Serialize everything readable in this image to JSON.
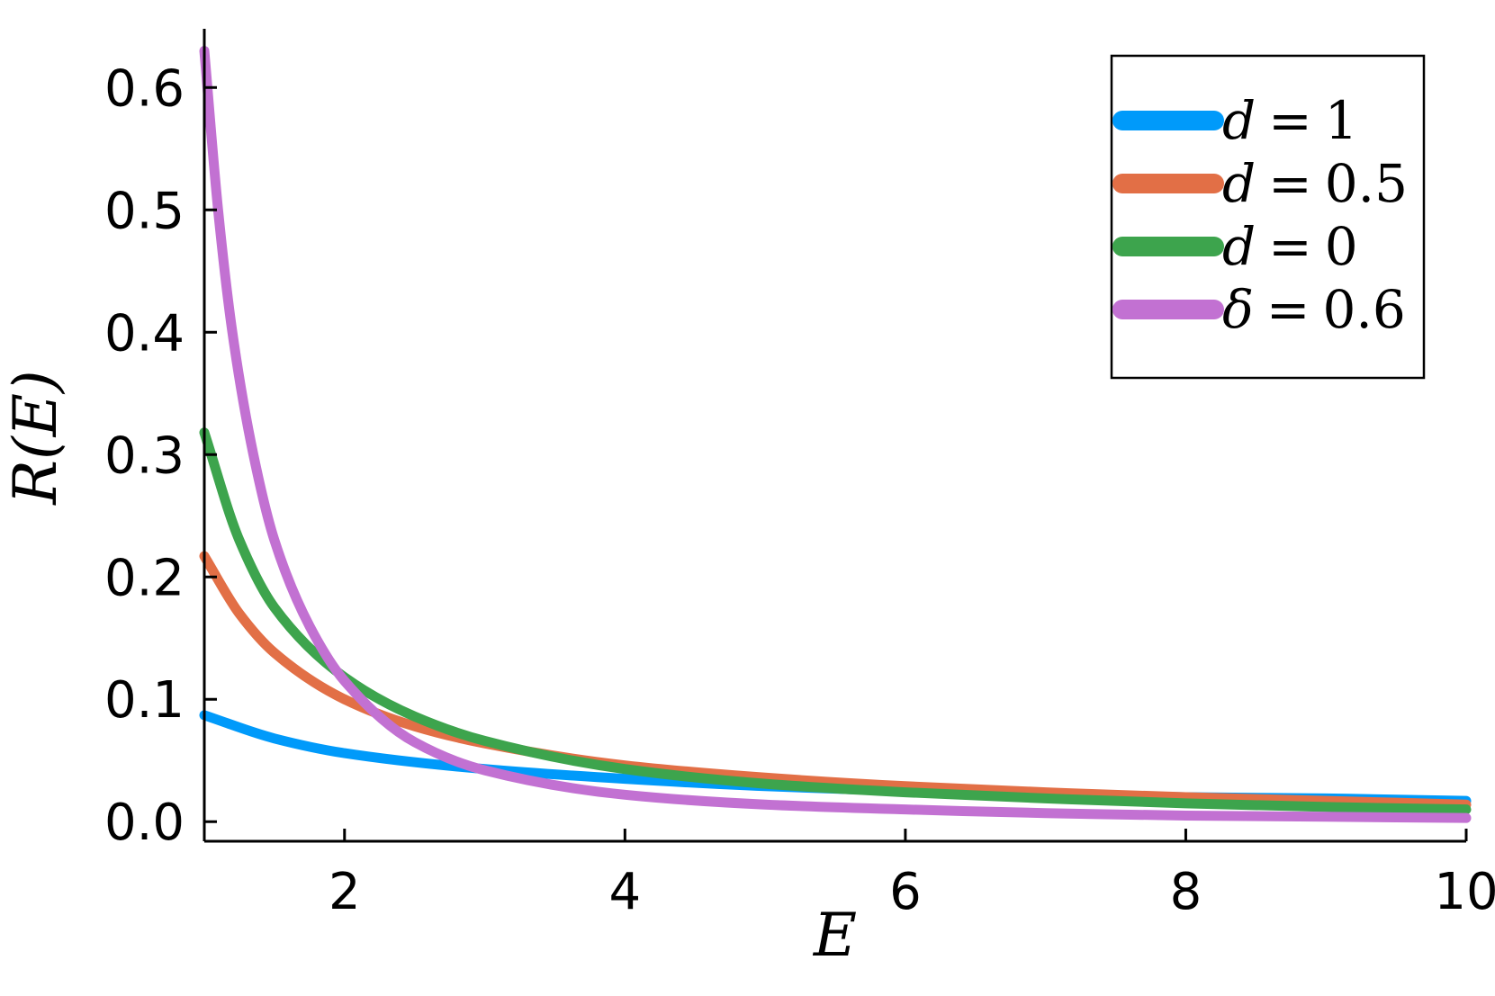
{
  "chart_data": {
    "type": "line",
    "xlabel": "E",
    "ylabel": "R(E)",
    "xlim": [
      1,
      10
    ],
    "ylim": [
      -0.016,
      0.648
    ],
    "x_ticks": [
      2,
      4,
      6,
      8,
      10
    ],
    "x_tick_labels": [
      "2",
      "4",
      "6",
      "8",
      "10"
    ],
    "y_ticks": [
      0.0,
      0.1,
      0.2,
      0.3,
      0.4,
      0.5,
      0.6
    ],
    "y_tick_labels": [
      "0.0",
      "0.1",
      "0.2",
      "0.3",
      "0.4",
      "0.5",
      "0.6"
    ],
    "grid": false,
    "legend_position": "top-right",
    "series": [
      {
        "name": "d = 1",
        "legend_var": "d",
        "legend_value": "1",
        "color": "#009AFA",
        "x": [
          1,
          1.5,
          2,
          3,
          4,
          5,
          6,
          7,
          8,
          9,
          10
        ],
        "y": [
          0.087,
          0.068,
          0.056,
          0.043,
          0.035,
          0.029,
          0.025,
          0.022,
          0.02,
          0.019,
          0.017
        ]
      },
      {
        "name": "d = 0.5",
        "legend_var": "d",
        "legend_value": "0.5",
        "color": "#E26F46",
        "x": [
          1,
          1.25,
          1.5,
          2,
          2.5,
          3,
          4,
          5,
          6,
          7,
          8,
          9,
          10
        ],
        "y": [
          0.217,
          0.17,
          0.138,
          0.1,
          0.078,
          0.064,
          0.046,
          0.036,
          0.029,
          0.024,
          0.02,
          0.017,
          0.014
        ]
      },
      {
        "name": "d = 0",
        "legend_var": "d",
        "legend_value": "0",
        "color": "#3DA44D",
        "x": [
          1,
          1.25,
          1.5,
          2,
          2.5,
          3,
          4,
          5,
          6,
          7,
          8,
          9,
          10
        ],
        "y": [
          0.318,
          0.23,
          0.175,
          0.118,
          0.086,
          0.066,
          0.043,
          0.031,
          0.024,
          0.019,
          0.015,
          0.012,
          0.01
        ]
      },
      {
        "name": "δ = 0.6",
        "legend_var": "δ",
        "legend_value": "0.6",
        "color": "#C271D2",
        "x": [
          1,
          1.1,
          1.2,
          1.35,
          1.5,
          1.75,
          2,
          2.5,
          3,
          4,
          5,
          6,
          7,
          8,
          9,
          10
        ],
        "y": [
          0.63,
          0.498,
          0.4,
          0.3,
          0.23,
          0.16,
          0.115,
          0.065,
          0.042,
          0.022,
          0.014,
          0.01,
          0.007,
          0.005,
          0.004,
          0.003
        ]
      }
    ]
  }
}
